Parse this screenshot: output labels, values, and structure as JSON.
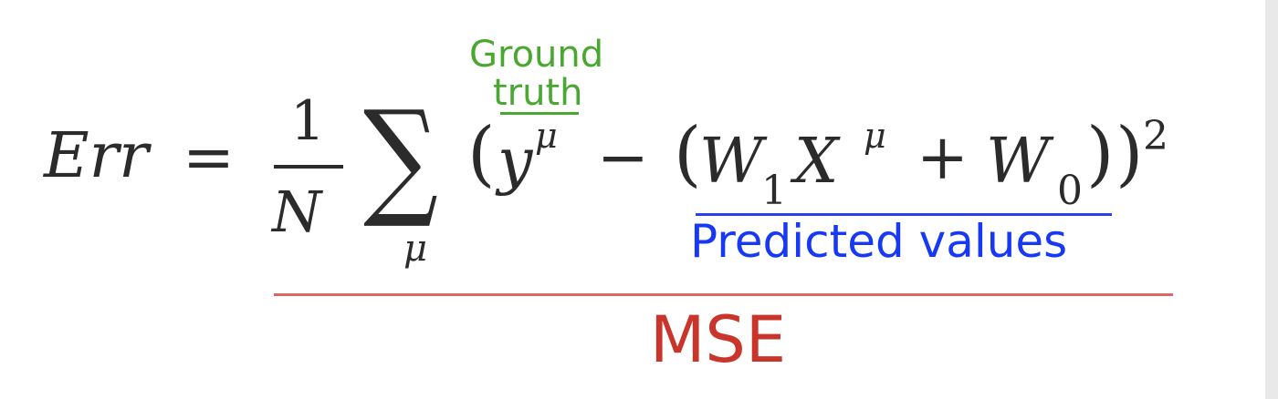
{
  "equation": {
    "lhs": "Err",
    "equals": "=",
    "fraction_numerator": "1",
    "fraction_denominator": "N",
    "sum_symbol": "∑",
    "sum_index": "μ",
    "open_paren": "(",
    "y": "y",
    "y_superscript": "μ",
    "minus": "−",
    "open_paren_inner": "(",
    "w1": "W",
    "w1_subscript": "1",
    "x": "X",
    "x_superscript": "μ",
    "plus": "+",
    "w0": "W",
    "w0_subscript": "0",
    "close_paren_inner": ")",
    "close_paren": ")",
    "square": "2"
  },
  "annotations": {
    "ground_truth_line1": "Ground",
    "ground_truth_line2": "truth",
    "predicted_values": "Predicted values",
    "mse": "MSE"
  },
  "colors": {
    "ground_truth": "#4aa832",
    "predicted": "#1739f4",
    "mse": "#c9342b"
  }
}
